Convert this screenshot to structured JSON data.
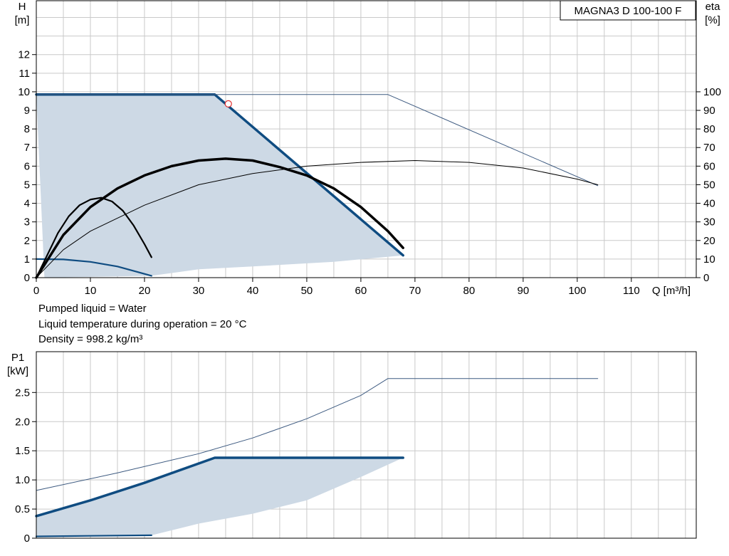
{
  "model_label": "MAGNA3 D 100-100 F",
  "notes": [
    "Pumped liquid = Water",
    "Liquid temperature during operation = 20 °C",
    "Density = 998.2 kg/m³"
  ],
  "colors": {
    "area": "#cdd9e5",
    "primary": "#0f4c81",
    "thin": "#3d5a80",
    "black": "#000000",
    "grid": "#c9c9c9",
    "duty_point": "#e03030"
  },
  "chart_data": [
    {
      "type": "line",
      "xlabel": "Q [m³/h]",
      "ylabel": "H\n[m]",
      "y2label": "eta\n[%]",
      "xlim": [
        0,
        122
      ],
      "ylim": [
        0,
        14.9
      ],
      "y2lim": [
        0,
        149
      ],
      "grid": true,
      "x_ticks": [
        0,
        10,
        20,
        30,
        40,
        50,
        60,
        70,
        80,
        90,
        100,
        110
      ],
      "y_ticks": [
        0,
        1,
        2,
        3,
        4,
        5,
        6,
        7,
        8,
        9,
        10,
        11,
        12
      ],
      "y2_ticks": [
        0,
        10,
        20,
        30,
        40,
        50,
        60,
        70,
        80,
        90,
        100
      ],
      "operating_area": [
        [
          0,
          9.85
        ],
        [
          33,
          9.85
        ],
        [
          67.8,
          1.2
        ],
        [
          55,
          0.85
        ],
        [
          40,
          0.6
        ],
        [
          30,
          0.45
        ],
        [
          21.3,
          0.1
        ],
        [
          1.5,
          0
        ]
      ],
      "series": [
        {
          "id": "h_max",
          "axis": "y",
          "style": "thick-blue",
          "points": [
            [
              0,
              9.85
            ],
            [
              33,
              9.85
            ],
            [
              67.8,
              1.2
            ]
          ]
        },
        {
          "id": "h_min",
          "axis": "y",
          "style": "blue",
          "points": [
            [
              0,
              1.0
            ],
            [
              5,
              0.98
            ],
            [
              10,
              0.85
            ],
            [
              15,
              0.6
            ],
            [
              21.3,
              0.1
            ]
          ]
        },
        {
          "id": "h_max_twin",
          "axis": "y",
          "style": "thin",
          "points": [
            [
              0,
              9.85
            ],
            [
              65,
              9.85
            ],
            [
              103.8,
              4.95
            ]
          ]
        },
        {
          "id": "eta_max",
          "axis": "y2",
          "style": "thick-black",
          "points": [
            [
              0,
              0
            ],
            [
              5,
              23
            ],
            [
              10,
              38
            ],
            [
              15,
              48
            ],
            [
              20,
              55
            ],
            [
              25,
              60
            ],
            [
              30,
              63
            ],
            [
              35,
              64
            ],
            [
              40,
              63
            ],
            [
              45,
              59.5
            ],
            [
              50,
              55
            ],
            [
              55,
              48
            ],
            [
              60,
              38
            ],
            [
              65,
              25
            ],
            [
              67.8,
              16
            ]
          ]
        },
        {
          "id": "eta_min",
          "axis": "y2",
          "style": "black",
          "points": [
            [
              0,
              0
            ],
            [
              2,
              12
            ],
            [
              4,
              24
            ],
            [
              6,
              33
            ],
            [
              8,
              39
            ],
            [
              10,
              42
            ],
            [
              12,
              43
            ],
            [
              14,
              41
            ],
            [
              16,
              36
            ],
            [
              18,
              28
            ],
            [
              20,
              18
            ],
            [
              21.3,
              11
            ]
          ]
        },
        {
          "id": "eta_twin",
          "axis": "y2",
          "style": "thin-black",
          "points": [
            [
              0,
              0
            ],
            [
              5,
              15
            ],
            [
              10,
              25
            ],
            [
              20,
              39
            ],
            [
              30,
              50
            ],
            [
              40,
              56
            ],
            [
              50,
              60
            ],
            [
              60,
              62
            ],
            [
              70,
              63
            ],
            [
              80,
              62
            ],
            [
              90,
              59
            ],
            [
              100,
              53
            ],
            [
              103.8,
              50
            ]
          ]
        }
      ],
      "duty_point": [
        35.5,
        9.35
      ]
    },
    {
      "type": "line",
      "xlabel": "",
      "ylabel": "P1\n[kW]",
      "xlim": [
        0,
        122
      ],
      "ylim": [
        0,
        3.2
      ],
      "grid": true,
      "y_ticks": [
        0,
        0.5,
        1.0,
        1.5,
        2.0,
        2.5
      ],
      "y_tick_labels": [
        "0",
        "0.5",
        "1.0",
        "1.5",
        "2.0",
        "2.5"
      ],
      "operating_area": [
        [
          0,
          0.38
        ],
        [
          10,
          0.65
        ],
        [
          20,
          0.95
        ],
        [
          33,
          1.38
        ],
        [
          67.8,
          1.38
        ],
        [
          60,
          1.05
        ],
        [
          50,
          0.65
        ],
        [
          40,
          0.42
        ],
        [
          30,
          0.25
        ],
        [
          21.3,
          0.05
        ],
        [
          0,
          0.03
        ]
      ],
      "series": [
        {
          "id": "p1_max",
          "axis": "y",
          "style": "thick-blue",
          "points": [
            [
              0,
              0.38
            ],
            [
              10,
              0.65
            ],
            [
              20,
              0.95
            ],
            [
              33,
              1.38
            ],
            [
              67.8,
              1.38
            ]
          ]
        },
        {
          "id": "p1_min",
          "axis": "y",
          "style": "blue",
          "points": [
            [
              0,
              0.03
            ],
            [
              10,
              0.04
            ],
            [
              21.3,
              0.05
            ]
          ]
        },
        {
          "id": "p1_twin",
          "axis": "y",
          "style": "thin",
          "points": [
            [
              0,
              0.82
            ],
            [
              15,
              1.12
            ],
            [
              30,
              1.45
            ],
            [
              40,
              1.72
            ],
            [
              50,
              2.05
            ],
            [
              60,
              2.45
            ],
            [
              65,
              2.74
            ],
            [
              103.8,
              2.74
            ]
          ]
        }
      ]
    }
  ]
}
